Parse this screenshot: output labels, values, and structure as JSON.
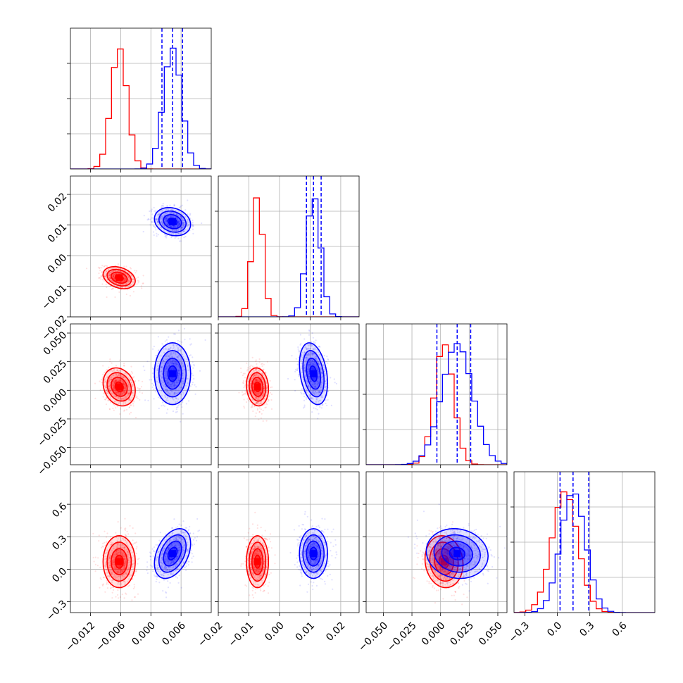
{
  "chart_data": {
    "type": "corner",
    "series_colors": [
      "#ff0000",
      "#0000ff"
    ],
    "grid": true,
    "params": [
      {
        "range": [
          -0.016,
          0.012
        ],
        "ticks": [
          {
            "v": -0.012,
            "label": "−0.012"
          },
          {
            "v": -0.006,
            "label": "−0.006"
          },
          {
            "v": 0.0,
            "label": "0.000"
          },
          {
            "v": 0.006,
            "label": "0.006"
          }
        ]
      },
      {
        "range": [
          -0.02,
          0.026
        ],
        "ticks": [
          {
            "v": -0.02,
            "label": "−0.02"
          },
          {
            "v": -0.01,
            "label": "−0.01"
          },
          {
            "v": 0.0,
            "label": "0.00"
          },
          {
            "v": 0.01,
            "label": "0.01"
          },
          {
            "v": 0.02,
            "label": "0.02"
          }
        ]
      },
      {
        "range": [
          -0.065,
          0.058
        ],
        "ticks": [
          {
            "v": -0.05,
            "label": "−0.050"
          },
          {
            "v": -0.025,
            "label": "−0.025"
          },
          {
            "v": 0.0,
            "label": "0.000"
          },
          {
            "v": 0.025,
            "label": "0.025"
          },
          {
            "v": 0.05,
            "label": "0.050"
          }
        ]
      },
      {
        "range": [
          -0.4,
          0.9
        ],
        "ticks": [
          {
            "v": -0.3,
            "label": "−0.3"
          },
          {
            "v": 0.0,
            "label": "0.0"
          },
          {
            "v": 0.3,
            "label": "0.3"
          },
          {
            "v": 0.6,
            "label": "0.6"
          }
        ]
      }
    ],
    "series": [
      {
        "color": "#ff0000",
        "mean": [
          -0.0063,
          -0.0072,
          0.003,
          0.07
        ],
        "sd": [
          0.0016,
          0.0018,
          0.0083,
          0.12
        ],
        "corr": {
          "0-1": -0.3,
          "0-2": -0.2,
          "0-3": 0.0,
          "1-2": -0.1,
          "1-3": 0.0,
          "2-3": -0.1
        }
      },
      {
        "color": "#0000ff",
        "mean": [
          0.0043,
          0.0111,
          0.0145,
          0.145
        ],
        "sd": [
          0.0018,
          0.0023,
          0.0135,
          0.115
        ],
        "corr": {
          "0-1": -0.2,
          "0-2": 0.0,
          "0-3": 0.4,
          "1-2": -0.3,
          "1-3": 0.0,
          "2-3": -0.1
        }
      }
    ],
    "quantiles_blue": [
      [
        0.0022,
        0.0043,
        0.0063
      ],
      [
        0.0088,
        0.0111,
        0.0136
      ],
      [
        -0.0032,
        0.0145,
        0.0263
      ],
      [
        0.025,
        0.145,
        0.29
      ]
    ]
  }
}
